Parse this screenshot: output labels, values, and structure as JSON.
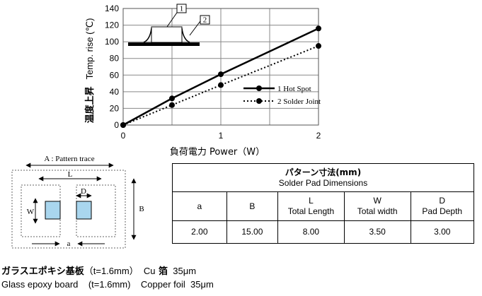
{
  "chart_data": {
    "type": "line",
    "x": [
      0,
      0.5,
      1,
      2
    ],
    "xticks": [
      "0",
      "1",
      "2"
    ],
    "yticks": [
      "0",
      "20",
      "40",
      "60",
      "80",
      "100",
      "120",
      "140"
    ],
    "xlim": [
      0,
      2
    ],
    "ylim": [
      0,
      140
    ],
    "xlabel": "負荷電力 Power（W）",
    "ylabel_jp": "温度上昇",
    "ylabel_en": "Temp. rise (℃)",
    "grid": true,
    "legend_position": "middle-right",
    "series": [
      {
        "name": "1 Hot Spot",
        "style": "solid",
        "values": [
          0,
          32,
          61,
          116
        ]
      },
      {
        "name": "2 Solder Joint",
        "style": "dotted",
        "values": [
          0,
          24,
          48,
          95
        ]
      }
    ],
    "inset_labels": [
      "1",
      "2"
    ]
  },
  "layout_figure": {
    "a_label": "a",
    "b_label": "B",
    "l_label": "L",
    "d_label": "D",
    "w_label": "W",
    "pattern_label": "A : Pattern trace",
    "pad_color": "#a9d6ee"
  },
  "pad_table": {
    "title_jp": "パターン寸法(mm)",
    "title_en": "Solder Pad Dimensions",
    "headers": [
      {
        "line1": "a",
        "line2": ""
      },
      {
        "line1": "B",
        "line2": ""
      },
      {
        "line1": "L",
        "line2": "Total Length"
      },
      {
        "line1": "W",
        "line2": "Total width"
      },
      {
        "line1": "D",
        "line2": "Pad Depth"
      }
    ],
    "values": [
      "2.00",
      "15.00",
      "8.00",
      "3.50",
      "3.00"
    ]
  },
  "footer": {
    "jp_board": "ガラスエポキシ基板",
    "jp_thickness": "（t=1.6mm）",
    "jp_cu": "  Cu",
    "jp_foil": " 箔",
    "jp_foil_thickness": "  35μm",
    "en_board": "Glass epoxy board",
    "en_thickness": "    (t=1.6mm)",
    "en_foil": "    Copper foil  35μm"
  }
}
